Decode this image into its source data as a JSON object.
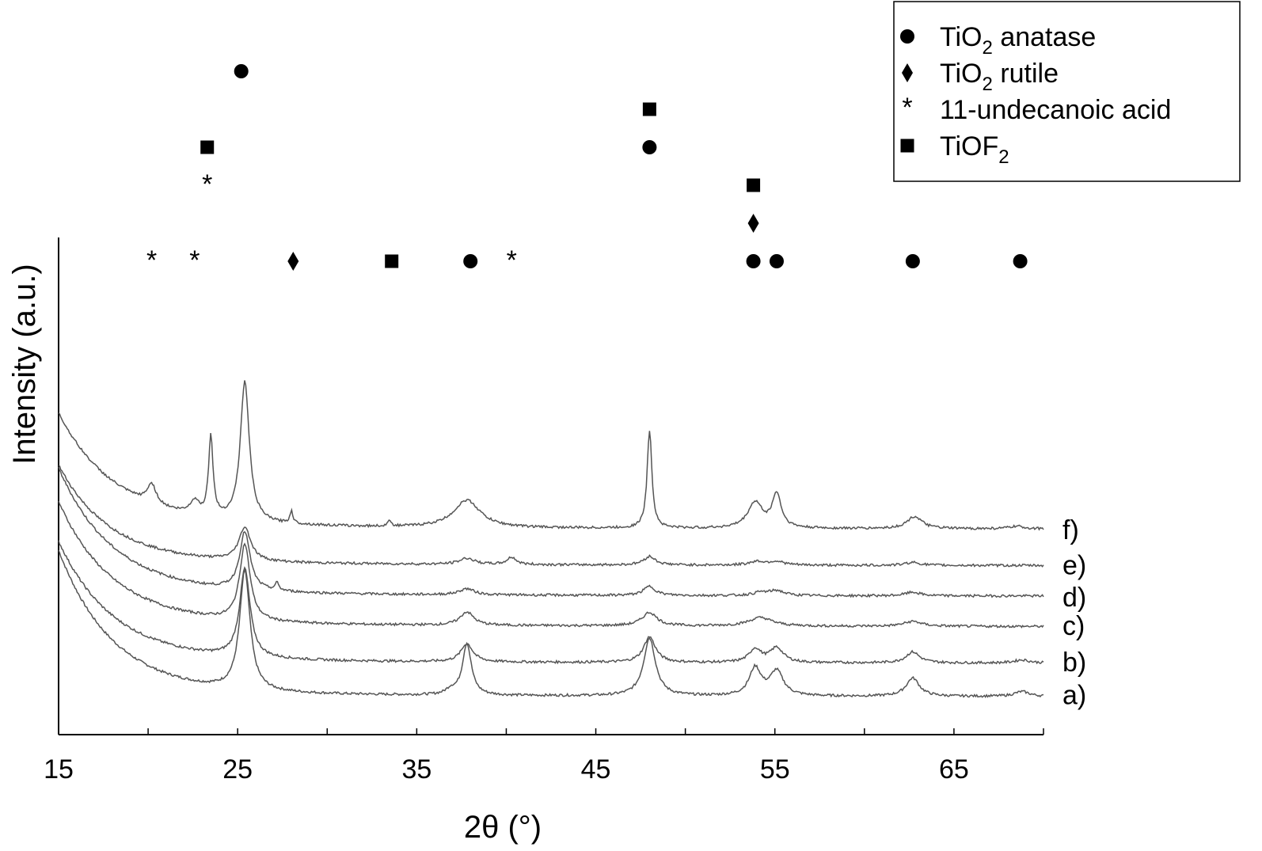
{
  "chart_data": {
    "type": "line",
    "xlabel": "2θ (°)",
    "ylabel": "Intensity (a.u.)",
    "xlim": [
      15,
      70
    ],
    "xticks": [
      "15",
      "25",
      "35",
      "45",
      "55",
      "65"
    ],
    "grid": false,
    "legend_position": "top-right",
    "legend": [
      {
        "marker": "circle",
        "text": "TiO",
        "sub": "2",
        "suffix": " anatase"
      },
      {
        "marker": "diamond",
        "text": "TiO",
        "sub": "2",
        "suffix": " rutile"
      },
      {
        "marker": "star",
        "text": "11-undecanoic acid",
        "sub": "",
        "suffix": ""
      },
      {
        "marker": "square",
        "text": "TiOF",
        "sub": "2",
        "suffix": ""
      }
    ],
    "series": [
      {
        "name": "a)",
        "baseline": 0.0,
        "start": 2.3,
        "decay": 3.0,
        "peaks": [
          [
            25.4,
            1.95,
            0.35
          ],
          [
            36.9,
            0.08,
            0.3
          ],
          [
            37.8,
            0.85,
            0.3
          ],
          [
            48.0,
            0.95,
            0.4
          ],
          [
            53.9,
            0.45,
            0.4
          ],
          [
            55.1,
            0.4,
            0.45
          ],
          [
            62.7,
            0.3,
            0.45
          ],
          [
            68.8,
            0.08,
            0.5
          ]
        ]
      },
      {
        "name": "b)",
        "baseline": 0.55,
        "start": 1.9,
        "decay": 3.0,
        "peaks": [
          [
            25.4,
            1.45,
            0.35
          ],
          [
            37.8,
            0.3,
            0.4
          ],
          [
            48.0,
            0.42,
            0.4
          ],
          [
            53.9,
            0.22,
            0.4
          ],
          [
            55.1,
            0.24,
            0.45
          ],
          [
            62.7,
            0.18,
            0.45
          ],
          [
            68.8,
            0.05,
            0.5
          ]
        ]
      },
      {
        "name": "c)",
        "baseline": 1.15,
        "start": 1.95,
        "decay": 3.0,
        "peaks": [
          [
            25.4,
            1.25,
            0.35
          ],
          [
            37.8,
            0.22,
            0.45
          ],
          [
            48.0,
            0.22,
            0.5
          ],
          [
            54.2,
            0.14,
            0.8
          ],
          [
            62.7,
            0.08,
            0.6
          ]
        ]
      },
      {
        "name": "d)",
        "baseline": 1.65,
        "start": 2.0,
        "decay": 3.0,
        "peaks": [
          [
            25.4,
            0.95,
            0.35
          ],
          [
            27.2,
            0.12,
            0.12
          ],
          [
            37.8,
            0.1,
            0.5
          ],
          [
            48.0,
            0.15,
            0.4
          ],
          [
            54.2,
            0.05,
            0.5
          ],
          [
            55.1,
            0.08,
            0.5
          ],
          [
            62.7,
            0.06,
            0.5
          ]
        ]
      },
      {
        "name": "e)",
        "baseline": 2.15,
        "start": 1.55,
        "decay": 2.8,
        "peaks": [
          [
            25.4,
            0.55,
            0.4
          ],
          [
            37.8,
            0.1,
            0.5
          ],
          [
            40.3,
            0.12,
            0.3
          ],
          [
            48.0,
            0.14,
            0.4
          ],
          [
            54.0,
            0.06,
            0.5
          ],
          [
            55.1,
            0.06,
            0.5
          ],
          [
            62.7,
            0.05,
            0.5
          ]
        ]
      },
      {
        "name": "f)",
        "baseline": 2.75,
        "start": 1.8,
        "decay": 3.2,
        "peaks": [
          [
            20.2,
            0.32,
            0.3
          ],
          [
            22.6,
            0.22,
            0.3
          ],
          [
            23.5,
            1.3,
            0.15
          ],
          [
            25.4,
            2.3,
            0.3
          ],
          [
            28.0,
            0.2,
            0.1
          ],
          [
            33.5,
            0.1,
            0.1
          ],
          [
            37.8,
            0.45,
            0.9
          ],
          [
            48.0,
            1.6,
            0.16
          ],
          [
            53.9,
            0.42,
            0.5
          ],
          [
            55.1,
            0.55,
            0.3
          ],
          [
            62.8,
            0.2,
            0.5
          ],
          [
            68.5,
            0.04,
            0.5
          ]
        ]
      }
    ],
    "peak_markers": [
      {
        "type": "star",
        "x": 20.2,
        "row": 0
      },
      {
        "type": "star",
        "x": 22.6,
        "row": 0
      },
      {
        "type": "square",
        "x": 23.3,
        "row": 3
      },
      {
        "type": "star",
        "x": 23.3,
        "row": 2
      },
      {
        "type": "circle",
        "x": 25.2,
        "row": 5
      },
      {
        "type": "diamond",
        "x": 28.1,
        "row": 0
      },
      {
        "type": "square",
        "x": 33.6,
        "row": 0
      },
      {
        "type": "circle",
        "x": 38.0,
        "row": 0
      },
      {
        "type": "star",
        "x": 40.3,
        "row": 0
      },
      {
        "type": "circle",
        "x": 48.0,
        "row": 3
      },
      {
        "type": "square",
        "x": 48.0,
        "row": 4
      },
      {
        "type": "circle",
        "x": 53.8,
        "row": 0
      },
      {
        "type": "diamond",
        "x": 53.8,
        "row": 1
      },
      {
        "type": "square",
        "x": 53.8,
        "row": 2
      },
      {
        "type": "circle",
        "x": 55.1,
        "row": 0
      },
      {
        "type": "circle",
        "x": 62.7,
        "row": 0
      },
      {
        "type": "circle",
        "x": 68.7,
        "row": 0
      }
    ]
  }
}
